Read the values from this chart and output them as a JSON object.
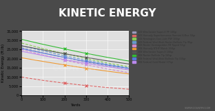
{
  "title": "KINETIC ENERGY",
  "xlabel": "Yards",
  "ylabel": "Kinetic Energy (ft.lb)",
  "title_bg": "#4a4a4a",
  "title_color": "#ffffff",
  "plot_bg": "#e0e0e0",
  "accent_bar": "#e05050",
  "xlim": [
    0,
    500
  ],
  "ylim": [
    0,
    35000
  ],
  "xticks": [
    0,
    100,
    200,
    300,
    400,
    500
  ],
  "yticks": [
    0,
    5000,
    10000,
    15000,
    20000,
    25000,
    30000,
    35000
  ],
  "series": [
    {
      "label": "243 Winchester Super-X PP 100gr",
      "color": "#9999bb",
      "style": "--",
      "marker": "x",
      "values": [
        26000,
        23200,
        20600,
        18200,
        16000,
        14000
      ]
    },
    {
      "label": "243 Hornady Superformance Varmint V-Max 58gr",
      "color": "#dd6666",
      "style": "--",
      "marker": "x",
      "values": [
        10000,
        8200,
        6700,
        5400,
        4300,
        3400
      ]
    },
    {
      "label": "243 Remington Core-Lokt PSP 100gr",
      "color": "#88cc55",
      "style": "--",
      "marker": "x",
      "values": [
        28500,
        25500,
        22700,
        20100,
        17700,
        15600
      ]
    },
    {
      "label": "243 Federal Vital-Shok Nosler Ballistic Tip 95gr",
      "color": "#6699cc",
      "style": "--",
      "marker": "x",
      "values": [
        27000,
        24200,
        21600,
        19200,
        17000,
        15000
      ]
    },
    {
      "label": "243 Nosler Varmageddon FB Tipped 55gr",
      "color": "#cc88cc",
      "style": "--",
      "marker": "x",
      "values": [
        25000,
        22000,
        19200,
        16700,
        14400,
        12400
      ]
    },
    {
      "label": "308 Hornady BTHP Match 168gr",
      "color": "#ee9933",
      "style": "-",
      "marker": "x",
      "values": [
        20500,
        18500,
        16600,
        14800,
        13200,
        11700
      ]
    },
    {
      "label": "308 Winchester Super-X 180gr",
      "color": "#555555",
      "style": "-",
      "marker": "x",
      "values": [
        27000,
        24800,
        22700,
        20700,
        18800,
        17100
      ]
    },
    {
      "label": "308 Nosler Ballistic Tip 165gr",
      "color": "#33bb33",
      "style": "-",
      "marker": "x",
      "values": [
        30500,
        27800,
        25300,
        22900,
        20700,
        18700
      ]
    },
    {
      "label": "308 Federal Vital-Shok Ballistic Tip 150gr",
      "color": "#5577dd",
      "style": "-",
      "marker": "x",
      "values": [
        25500,
        23000,
        20700,
        18500,
        16500,
        14700
      ]
    },
    {
      "label": "308 Federal Gold Medal 175gr",
      "color": "#bb88ee",
      "style": "-",
      "marker": "x",
      "values": [
        24000,
        21700,
        19500,
        17500,
        15600,
        13900
      ]
    }
  ]
}
